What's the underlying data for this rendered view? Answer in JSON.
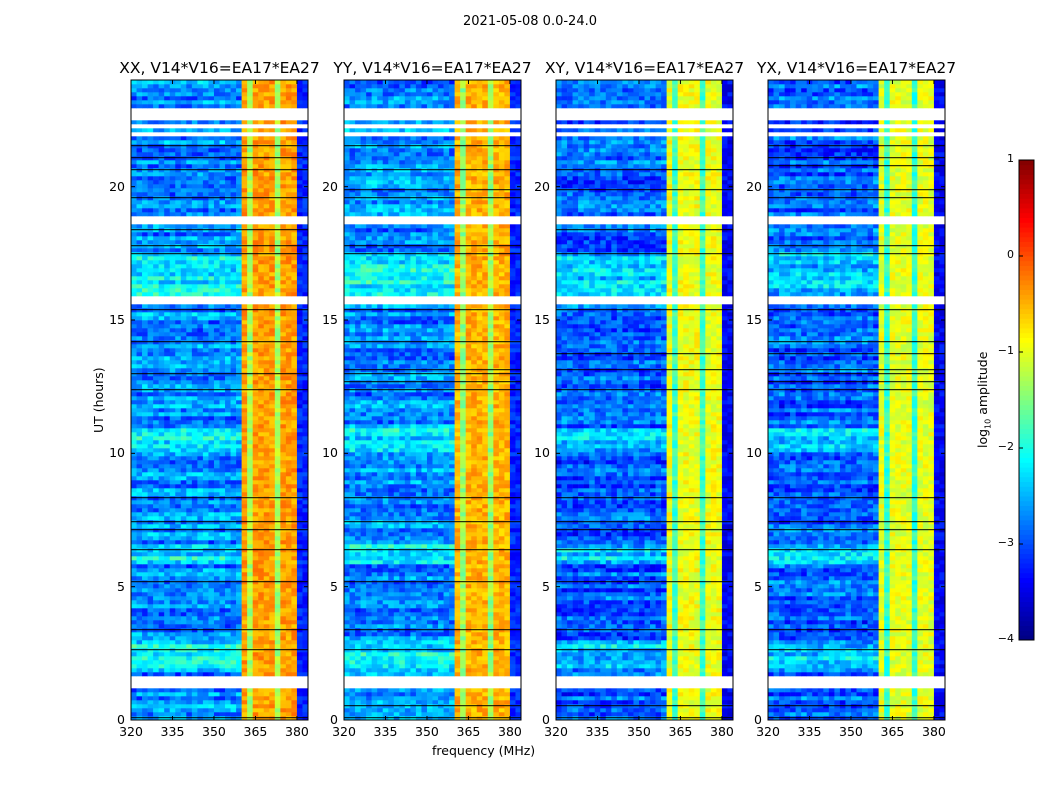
{
  "chart_data": {
    "type": "heatmap",
    "suptitle": "2021-05-08 0.0-24.0",
    "xlabel": "frequency (MHz)",
    "ylabel": "UT (hours)",
    "xlim": [
      320,
      384
    ],
    "ylim": [
      0,
      24
    ],
    "xticks": [
      "320",
      "335",
      "350",
      "365",
      "380"
    ],
    "yticks": [
      "0",
      "5",
      "10",
      "15",
      "20"
    ],
    "panels": [
      {
        "title": "XX, V14*V16=EA17*EA27",
        "band_level": -0.4,
        "bg_level": -2.7
      },
      {
        "title": "YY, V14*V16=EA17*EA27",
        "band_level": -0.5,
        "bg_level": -2.7
      },
      {
        "title": "XY, V14*V16=EA17*EA27",
        "band_level": -0.95,
        "bg_level": -2.9
      },
      {
        "title": "YX, V14*V16=EA17*EA27",
        "band_level": -1.0,
        "bg_level": -2.9
      }
    ],
    "band_mhz": [
      360,
      379
    ],
    "band_gap_channels_mhz": [
      363.5,
      368,
      372.5,
      378
    ],
    "flagged_hours": [
      [
        1.25,
        1.6
      ],
      [
        1.75,
        1.85
      ],
      [
        15.55,
        15.85
      ],
      [
        18.65,
        18.85
      ],
      [
        21.85,
        22.05
      ],
      [
        22.25,
        22.35
      ],
      [
        22.55,
        22.95
      ]
    ],
    "colorbar": {
      "label": "log10 amplitude",
      "label_main": "log",
      "label_sub": "10",
      "label_rest": " amplitude",
      "range": [
        -4,
        1
      ],
      "ticks": [
        "1",
        "0",
        "−1",
        "−2",
        "−3",
        "−4"
      ],
      "colormap": "jet"
    }
  }
}
